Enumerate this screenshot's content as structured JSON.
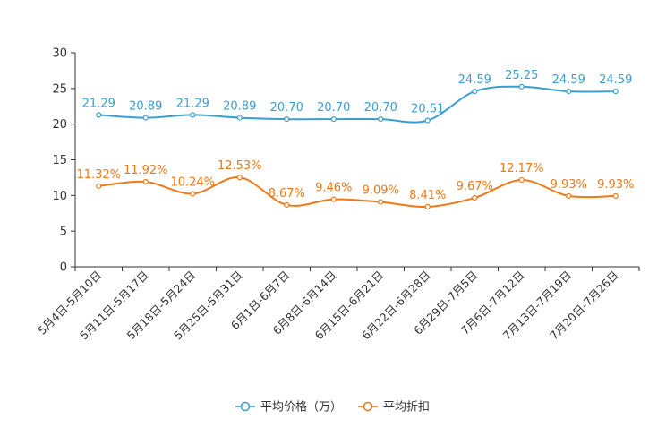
{
  "chart_data": {
    "type": "line",
    "title": "",
    "xlabel": "",
    "ylabel": "",
    "ylim": [
      0,
      30
    ],
    "yticks": [
      0,
      5,
      10,
      15,
      20,
      25,
      30
    ],
    "categories": [
      "5月4日-5月10日",
      "5月11日-5月17日",
      "5月18日-5月24日",
      "5月25日-5月31日",
      "6月1日-6月7日",
      "6月8日-6月14日",
      "6月15日-6月21日",
      "6月22日-6月28日",
      "6月29日-7月5日",
      "7月6日-7月12日",
      "7月13日-7月19日",
      "7月20日-7月26日"
    ],
    "series": [
      {
        "name": "平均价格（万）",
        "color": "#3a9fd0",
        "values": [
          21.29,
          20.89,
          21.29,
          20.89,
          20.7,
          20.7,
          20.7,
          20.51,
          24.59,
          25.25,
          24.59,
          24.59
        ],
        "labels": [
          "21.29",
          "20.89",
          "21.29",
          "20.89",
          "20.70",
          "20.70",
          "20.70",
          "20.51",
          "24.59",
          "25.25",
          "24.59",
          "24.59"
        ]
      },
      {
        "name": "平均折扣",
        "color": "#f07818",
        "values": [
          11.32,
          11.92,
          10.24,
          12.53,
          8.67,
          9.46,
          9.09,
          8.41,
          9.67,
          12.17,
          9.93,
          9.93
        ],
        "labels": [
          "11.32%",
          "11.92%",
          "10.24%",
          "12.53%",
          "8.67%",
          "9.46%",
          "9.09%",
          "8.41%",
          "9.67%",
          "12.17%",
          "9.93%",
          "9.93%"
        ]
      }
    ],
    "legend_position": "bottom-center",
    "grid": false
  }
}
